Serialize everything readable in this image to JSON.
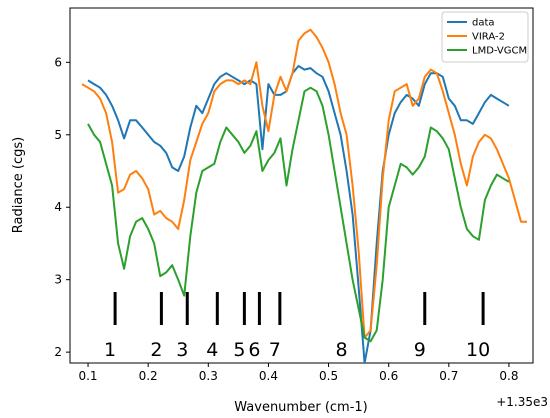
{
  "chart_data": {
    "type": "line",
    "title": "",
    "xlabel": "Wavenumber (cm-1)",
    "ylabel": "Radiance (cgs)",
    "x_offset_label": "+1.35e3",
    "xlim": [
      0.07,
      0.84
    ],
    "ylim": [
      1.85,
      6.75
    ],
    "xticks": [
      0.1,
      0.2,
      0.3,
      0.4,
      0.5,
      0.6,
      0.7,
      0.8
    ],
    "xtick_labels": [
      "0.1",
      "0.2",
      "0.3",
      "0.4",
      "0.5",
      "0.6",
      "0.7",
      "0.8"
    ],
    "yticks": [
      2,
      3,
      4,
      5,
      6
    ],
    "ytick_labels": [
      "2",
      "3",
      "4",
      "5",
      "6"
    ],
    "grid": false,
    "legend_position": "top-right",
    "series": [
      {
        "name": "data",
        "color": "#1f77b4",
        "x": [
          0.1,
          0.11,
          0.12,
          0.13,
          0.14,
          0.15,
          0.16,
          0.17,
          0.18,
          0.19,
          0.2,
          0.21,
          0.22,
          0.23,
          0.24,
          0.25,
          0.26,
          0.27,
          0.28,
          0.29,
          0.3,
          0.31,
          0.32,
          0.33,
          0.34,
          0.35,
          0.36,
          0.37,
          0.38,
          0.39,
          0.4,
          0.41,
          0.42,
          0.43,
          0.44,
          0.45,
          0.46,
          0.47,
          0.48,
          0.49,
          0.5,
          0.51,
          0.52,
          0.53,
          0.54,
          0.55,
          0.56,
          0.57,
          0.58,
          0.59,
          0.6,
          0.61,
          0.62,
          0.63,
          0.64,
          0.65,
          0.66,
          0.67,
          0.68,
          0.69,
          0.7,
          0.71,
          0.72,
          0.73,
          0.74,
          0.75,
          0.76,
          0.77,
          0.78,
          0.79,
          0.8
        ],
        "y": [
          5.75,
          5.7,
          5.65,
          5.55,
          5.4,
          5.2,
          4.95,
          5.2,
          5.2,
          5.1,
          5.0,
          4.9,
          4.85,
          4.75,
          4.55,
          4.5,
          4.7,
          5.1,
          5.4,
          5.3,
          5.5,
          5.7,
          5.8,
          5.85,
          5.8,
          5.75,
          5.7,
          5.75,
          5.7,
          4.8,
          5.7,
          5.55,
          5.55,
          5.6,
          5.85,
          5.95,
          5.9,
          5.92,
          5.85,
          5.8,
          5.6,
          5.3,
          5.0,
          4.5,
          3.9,
          2.9,
          1.85,
          2.3,
          3.5,
          4.5,
          5.0,
          5.3,
          5.45,
          5.55,
          5.5,
          5.4,
          5.7,
          5.85,
          5.85,
          5.8,
          5.5,
          5.4,
          5.2,
          5.2,
          5.15,
          5.3,
          5.45,
          5.55,
          5.5,
          5.45,
          5.4
        ]
      },
      {
        "name": "VIRA-2",
        "color": "#ff7f0e",
        "x": [
          0.09,
          0.1,
          0.11,
          0.12,
          0.13,
          0.14,
          0.15,
          0.16,
          0.17,
          0.18,
          0.19,
          0.2,
          0.21,
          0.22,
          0.23,
          0.24,
          0.25,
          0.26,
          0.27,
          0.28,
          0.29,
          0.3,
          0.31,
          0.32,
          0.33,
          0.34,
          0.35,
          0.36,
          0.37,
          0.38,
          0.39,
          0.4,
          0.41,
          0.42,
          0.43,
          0.44,
          0.45,
          0.46,
          0.47,
          0.48,
          0.49,
          0.5,
          0.51,
          0.52,
          0.53,
          0.54,
          0.55,
          0.56,
          0.57,
          0.58,
          0.59,
          0.6,
          0.61,
          0.62,
          0.63,
          0.64,
          0.65,
          0.66,
          0.67,
          0.68,
          0.69,
          0.7,
          0.71,
          0.72,
          0.73,
          0.74,
          0.75,
          0.76,
          0.77,
          0.78,
          0.79,
          0.8,
          0.81,
          0.82,
          0.83
        ],
        "y": [
          5.7,
          5.65,
          5.6,
          5.5,
          5.3,
          4.9,
          4.2,
          4.25,
          4.45,
          4.5,
          4.4,
          4.25,
          3.9,
          3.95,
          3.85,
          3.8,
          3.7,
          4.1,
          4.65,
          4.9,
          5.15,
          5.3,
          5.6,
          5.7,
          5.75,
          5.75,
          5.7,
          5.75,
          5.7,
          6.0,
          5.4,
          5.05,
          5.55,
          5.8,
          5.6,
          5.85,
          6.3,
          6.4,
          6.45,
          6.35,
          6.2,
          6.0,
          5.7,
          5.3,
          5.0,
          4.3,
          3.4,
          2.2,
          2.3,
          3.2,
          4.4,
          5.2,
          5.6,
          5.65,
          5.7,
          5.4,
          5.5,
          5.8,
          5.9,
          5.85,
          5.6,
          5.3,
          5.0,
          4.6,
          4.3,
          4.7,
          4.9,
          5.0,
          4.95,
          4.8,
          4.6,
          4.4,
          4.1,
          3.8,
          3.8
        ]
      },
      {
        "name": "LMD-VGCM",
        "color": "#2ca02c",
        "x": [
          0.1,
          0.11,
          0.12,
          0.13,
          0.14,
          0.15,
          0.16,
          0.17,
          0.18,
          0.19,
          0.2,
          0.21,
          0.22,
          0.23,
          0.24,
          0.25,
          0.26,
          0.27,
          0.28,
          0.29,
          0.3,
          0.31,
          0.32,
          0.33,
          0.34,
          0.35,
          0.36,
          0.37,
          0.38,
          0.39,
          0.4,
          0.41,
          0.42,
          0.43,
          0.44,
          0.45,
          0.46,
          0.47,
          0.48,
          0.49,
          0.5,
          0.51,
          0.52,
          0.53,
          0.54,
          0.55,
          0.56,
          0.57,
          0.58,
          0.59,
          0.6,
          0.61,
          0.62,
          0.63,
          0.64,
          0.65,
          0.66,
          0.67,
          0.68,
          0.69,
          0.7,
          0.71,
          0.72,
          0.73,
          0.74,
          0.75,
          0.76,
          0.77,
          0.78,
          0.79,
          0.8
        ],
        "y": [
          5.15,
          5.0,
          4.9,
          4.6,
          4.3,
          3.5,
          3.15,
          3.6,
          3.8,
          3.85,
          3.7,
          3.5,
          3.05,
          3.1,
          3.2,
          3.0,
          2.78,
          3.6,
          4.2,
          4.5,
          4.55,
          4.6,
          4.9,
          5.1,
          5.0,
          4.9,
          4.75,
          4.85,
          5.05,
          4.5,
          4.65,
          4.75,
          4.95,
          4.3,
          4.8,
          5.2,
          5.6,
          5.65,
          5.6,
          5.4,
          5.0,
          4.5,
          4.0,
          3.5,
          3.0,
          2.6,
          2.2,
          2.15,
          2.3,
          3.0,
          4.0,
          4.3,
          4.6,
          4.55,
          4.45,
          4.55,
          4.7,
          5.1,
          5.05,
          4.95,
          4.8,
          4.4,
          4.0,
          3.7,
          3.6,
          3.55,
          4.1,
          4.3,
          4.45,
          4.4,
          4.35
        ]
      }
    ],
    "markers": [
      {
        "label": "1",
        "x": 0.145,
        "has_line": true
      },
      {
        "label": "2",
        "x": 0.222,
        "has_line": true
      },
      {
        "label": "3",
        "x": 0.265,
        "has_line": true
      },
      {
        "label": "4",
        "x": 0.315,
        "has_line": true
      },
      {
        "label": "5",
        "x": 0.36,
        "has_line": true
      },
      {
        "label": "6",
        "x": 0.385,
        "has_line": true
      },
      {
        "label": "7",
        "x": 0.419,
        "has_line": true
      },
      {
        "label": "8",
        "x": 0.53,
        "has_line": false
      },
      {
        "label": "9",
        "x": 0.66,
        "has_line": true
      },
      {
        "label": "10",
        "x": 0.757,
        "has_line": true
      }
    ]
  }
}
